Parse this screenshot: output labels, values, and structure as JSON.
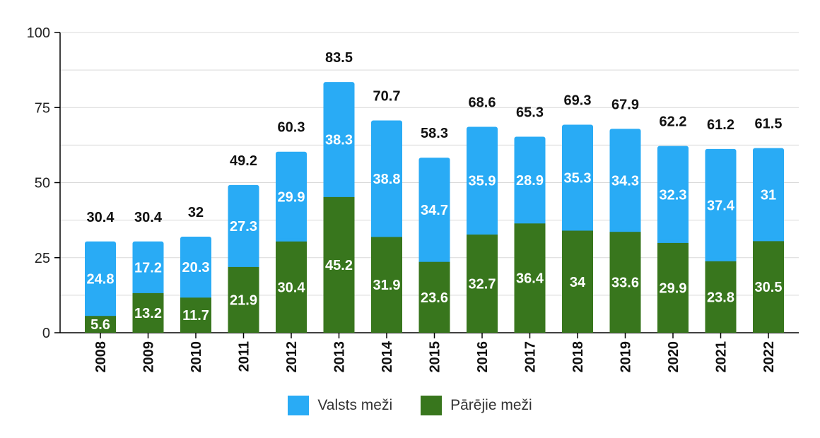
{
  "colors": {
    "valsts": "#29abf5",
    "pareji": "#38761d",
    "grid": "#d9d9d9",
    "axis": "#000000"
  },
  "chart_data": {
    "type": "bar",
    "stacked": true,
    "categories": [
      "2008",
      "2009",
      "2010",
      "2011",
      "2012",
      "2013",
      "2014",
      "2015",
      "2016",
      "2017",
      "2018",
      "2019",
      "2020",
      "2021",
      "2022"
    ],
    "series": [
      {
        "name": "Pārējie meži",
        "values": [
          5.6,
          13.2,
          11.7,
          21.9,
          30.4,
          45.2,
          31.9,
          23.6,
          32.7,
          36.4,
          34,
          33.6,
          29.9,
          23.8,
          30.5
        ]
      },
      {
        "name": "Valsts meži",
        "values": [
          24.8,
          17.2,
          20.3,
          27.3,
          29.9,
          38.3,
          38.8,
          34.7,
          35.9,
          28.9,
          35.3,
          34.3,
          32.3,
          37.4,
          31
        ]
      }
    ],
    "totals": [
      "30.4",
      "30.4",
      "32",
      "49.2",
      "60.3",
      "83.5",
      "70.7",
      "58.3",
      "68.6",
      "65.3",
      "69.3",
      "67.9",
      "62.2",
      "61.2",
      "61.5"
    ],
    "value_labels": {
      "Pārējie meži": [
        "5.6",
        "13.2",
        "11.7",
        "21.9",
        "30.4",
        "45.2",
        "31.9",
        "23.6",
        "32.7",
        "36.4",
        "34",
        "33.6",
        "29.9",
        "23.8",
        "30.5"
      ],
      "Valsts meži": [
        "24.8",
        "17.2",
        "20.3",
        "27.3",
        "29.9",
        "38.3",
        "38.8",
        "34.7",
        "35.9",
        "28.9",
        "35.3",
        "34.3",
        "32.3",
        "37.4",
        "31"
      ]
    },
    "y_ticks": [
      "0",
      "25",
      "50",
      "75",
      "100"
    ],
    "ylim": [
      0,
      100
    ],
    "grid": true,
    "legend": [
      "Valsts meži",
      "Pārējie meži"
    ],
    "legend_position": "bottom",
    "title": "",
    "xlabel": "",
    "ylabel": ""
  }
}
